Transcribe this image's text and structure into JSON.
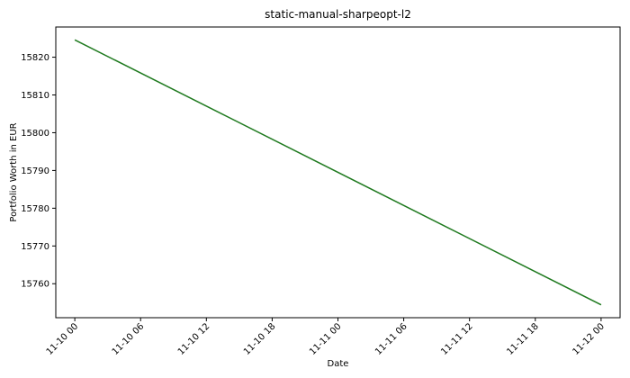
{
  "chart_data": {
    "type": "line",
    "title": "static-manual-sharpeopt-l2",
    "xlabel": "Date",
    "ylabel": "Portfolio Worth in EUR",
    "x_tick_labels": [
      "11-10 00",
      "11-10 06",
      "11-10 12",
      "11-10 18",
      "11-11 00",
      "11-11 06",
      "11-11 12",
      "11-11 18",
      "11-12 00"
    ],
    "x_tick_hours": [
      0,
      6,
      12,
      18,
      24,
      30,
      36,
      42,
      48
    ],
    "xlim": [
      "11-09 22:16",
      "11-12 01:44"
    ],
    "y_ticks": [
      15760,
      15770,
      15780,
      15790,
      15800,
      15810,
      15820
    ],
    "ylim": [
      15751.0,
      15828.0
    ],
    "grid": false,
    "series": [
      {
        "color": "#1f7a1f",
        "x": [
          "11-10 00",
          "11-12 00"
        ],
        "y": [
          15824.6,
          15754.4
        ]
      }
    ]
  }
}
